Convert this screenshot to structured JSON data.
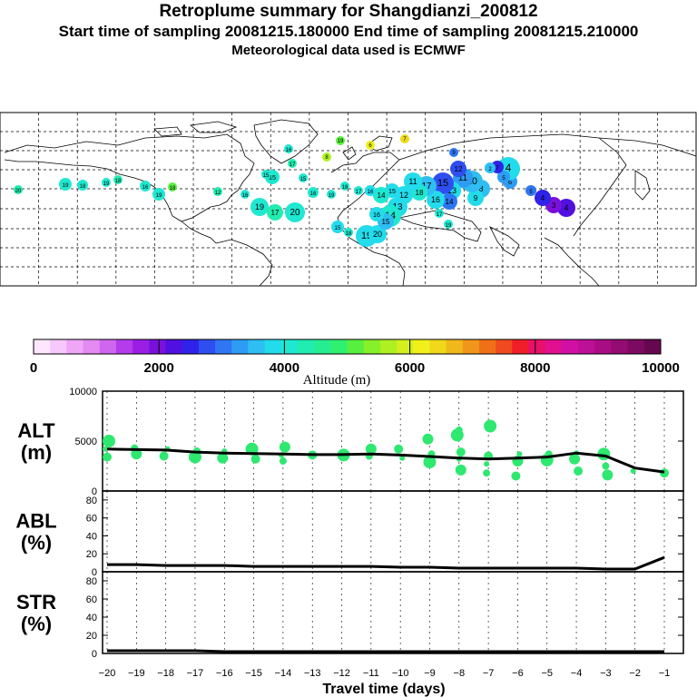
{
  "header": {
    "title": "Retroplume summary for Shangdianzi_200812",
    "sampling_line": "Start time of sampling 20081215.180000     End time of sampling 20081215.210000",
    "met_line": "Meteorological data used is ECMWF"
  },
  "colorbar": {
    "label": "Altitude (m)",
    "ticks": [
      "0",
      "2000",
      "4000",
      "6000",
      "8000",
      "10000"
    ],
    "range": [
      0,
      10000
    ],
    "colors": [
      "#ffe6ff",
      "#f7c8fb",
      "#efa6f7",
      "#e38af3",
      "#cf66ef",
      "#b43ceb",
      "#9a1ee3",
      "#7a10db",
      "#5010e0",
      "#2f22e9",
      "#2e4ef0",
      "#2e76f2",
      "#2e9cf4",
      "#2ebef2",
      "#22dceb",
      "#1ee8d0",
      "#22ecb0",
      "#26ee90",
      "#30f070",
      "#58f040",
      "#86f02a",
      "#aef022",
      "#d2f01e",
      "#f0f01a",
      "#f0d81a",
      "#f0b81a",
      "#f0961a",
      "#f0701a",
      "#f04a20",
      "#f01e28",
      "#e8106a",
      "#e0108e",
      "#d010a4",
      "#bc1096",
      "#a80e84",
      "#920c72",
      "#7c0a60",
      "#660850"
    ]
  },
  "chart_data": [
    {
      "type": "line",
      "panel": "ALT",
      "ylabel": "ALT\n(m)",
      "ylabel_lines": [
        "ALT",
        "(m)"
      ],
      "ylim": [
        0,
        10000
      ],
      "yticks": [
        "10000",
        "5000",
        "0"
      ],
      "x": [
        -20,
        -19,
        -18,
        -17,
        -16,
        -15,
        -14,
        -13,
        -12,
        -11,
        -10,
        -9,
        -8,
        -7,
        -6,
        -5,
        -4,
        -3,
        -2,
        -1
      ],
      "values": [
        4200,
        4150,
        4100,
        3900,
        3800,
        3750,
        3700,
        3650,
        3650,
        3700,
        3600,
        3450,
        3300,
        3200,
        3300,
        3400,
        3800,
        3500,
        2300,
        1900
      ],
      "scatter_color": "#2ee870",
      "scatter": [
        [
          -20,
          4200
        ],
        [
          -20,
          3400
        ],
        [
          -20,
          5000
        ],
        [
          -19,
          4300
        ],
        [
          -19,
          3700
        ],
        [
          -18,
          4200
        ],
        [
          -18,
          3500
        ],
        [
          -17,
          3400
        ],
        [
          -17,
          4000
        ],
        [
          -16,
          3300
        ],
        [
          -16,
          4000
        ],
        [
          -15,
          3200
        ],
        [
          -15,
          4200
        ],
        [
          -14,
          3000
        ],
        [
          -14,
          4400
        ],
        [
          -14,
          3600
        ],
        [
          -13,
          3600
        ],
        [
          -12,
          3600
        ],
        [
          -11,
          3500
        ],
        [
          -11,
          4200
        ],
        [
          -10,
          3300
        ],
        [
          -10,
          4200
        ],
        [
          -9,
          2900
        ],
        [
          -9,
          3700
        ],
        [
          -9,
          5200
        ],
        [
          -8,
          3200
        ],
        [
          -8,
          3900
        ],
        [
          -8,
          5600
        ],
        [
          -8,
          6100
        ],
        [
          -8,
          2100
        ],
        [
          -7,
          2700
        ],
        [
          -7,
          3500
        ],
        [
          -7,
          6500
        ],
        [
          -7,
          1800
        ],
        [
          -6,
          3000
        ],
        [
          -6,
          3700
        ],
        [
          -6,
          1500
        ],
        [
          -5,
          3100
        ],
        [
          -5,
          3700
        ],
        [
          -4,
          3200
        ],
        [
          -4,
          3800
        ],
        [
          -4,
          2000
        ],
        [
          -3,
          3700
        ],
        [
          -3,
          2500
        ],
        [
          -3,
          1600
        ],
        [
          -2,
          2000
        ],
        [
          -1,
          1800
        ]
      ]
    },
    {
      "type": "line",
      "panel": "ABL",
      "ylabel": "ABL\n(%)",
      "ylabel_lines": [
        "ABL",
        "(%)"
      ],
      "ylim": [
        0,
        90
      ],
      "yticks": [
        "80",
        "60",
        "40",
        "20",
        "0"
      ],
      "x": [
        -20,
        -19,
        -18,
        -17,
        -16,
        -15,
        -14,
        -13,
        -12,
        -11,
        -10,
        -9,
        -8,
        -7,
        -6,
        -5,
        -4,
        -3,
        -2,
        -1
      ],
      "values": [
        8,
        8,
        7,
        7,
        7,
        6,
        6,
        6,
        6,
        6,
        5,
        5,
        4,
        4,
        4,
        4,
        4,
        3,
        3,
        16
      ]
    },
    {
      "type": "line",
      "panel": "STR",
      "ylabel": "STR\n(%)",
      "ylabel_lines": [
        "STR",
        "(%)"
      ],
      "ylim": [
        0,
        90
      ],
      "yticks": [
        "80",
        "60",
        "40",
        "20",
        "0"
      ],
      "x": [
        -20,
        -19,
        -18,
        -17,
        -16,
        -15,
        -14,
        -13,
        -12,
        -11,
        -10,
        -9,
        -8,
        -7,
        -6,
        -5,
        -4,
        -3,
        -2,
        -1
      ],
      "values": [
        3,
        3,
        3,
        3,
        2,
        2,
        2,
        2,
        2,
        2,
        2,
        2,
        2,
        2,
        2,
        2,
        2,
        2,
        2,
        2
      ],
      "xlabel": "Travel time (days)",
      "xticks": [
        "−20",
        "−19",
        "−18",
        "−17",
        "−16",
        "−15",
        "−14",
        "−13",
        "−12",
        "−11",
        "−10",
        "−9",
        "−8",
        "−7",
        "−6",
        "−5",
        "−4",
        "−3",
        "−2",
        "−1"
      ]
    }
  ],
  "map": {
    "plume_points": [
      {
        "label": "1",
        "alt": 2000
      },
      {
        "label": "2",
        "alt": 2300
      },
      {
        "label": "3",
        "alt": 2500
      },
      {
        "label": "4",
        "alt": 2600
      },
      {
        "label": "5",
        "alt": 3000
      },
      {
        "label": "6",
        "alt": 3200
      },
      {
        "label": "7",
        "alt": 3300
      },
      {
        "label": "8",
        "alt": 3400
      },
      {
        "label": "9",
        "alt": 3400
      },
      {
        "label": "10",
        "alt": 3500
      },
      {
        "label": "11",
        "alt": 3500
      },
      {
        "label": "12",
        "alt": 3600
      },
      {
        "label": "13",
        "alt": 3700
      },
      {
        "label": "14",
        "alt": 3700
      },
      {
        "label": "15",
        "alt": 3800
      },
      {
        "label": "16",
        "alt": 3900
      },
      {
        "label": "17",
        "alt": 4000
      },
      {
        "label": "18",
        "alt": 4100
      },
      {
        "label": "19",
        "alt": 4200
      },
      {
        "label": "20",
        "alt": 4200
      },
      {
        "label": "19",
        "alt": 5000
      },
      {
        "label": "6",
        "alt": 6100
      },
      {
        "label": "7",
        "alt": 6500
      },
      {
        "label": "8",
        "alt": 5600
      }
    ]
  }
}
